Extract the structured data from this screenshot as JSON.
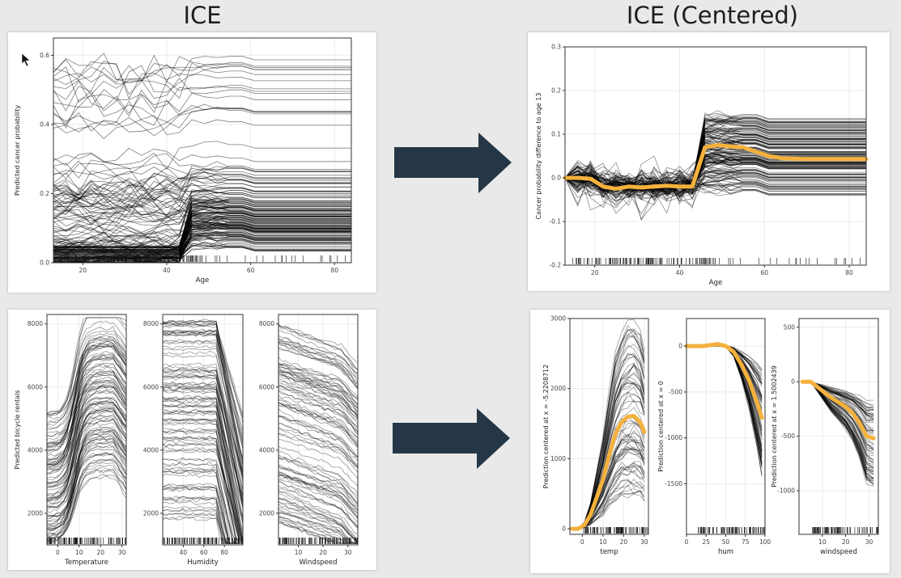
{
  "headings": {
    "left": "ICE",
    "right": "ICE (Centered)"
  },
  "colors": {
    "background": "#e9e9e9",
    "panel": "#ffffff",
    "line": "#000000",
    "highlight": "#f4b13d",
    "arrow": "#253746",
    "grid": "#ebebeb",
    "axis": "#333333"
  },
  "chart_data": [
    {
      "type": "line",
      "id": "cancer-ice",
      "xlabel": "Age",
      "ylabel": "Predicted cancer probability",
      "xlim": [
        13,
        84
      ],
      "ylim": [
        0,
        0.65
      ],
      "xticks": [
        20,
        40,
        60,
        80
      ],
      "xtick_labels": [
        "20",
        "40",
        "60",
        "80"
      ],
      "yticks": [
        0,
        0.2,
        0.4,
        0.6
      ],
      "ytick_labels": [
        "0.0",
        "0.2",
        "0.4",
        "0.6"
      ],
      "x": [
        13,
        16,
        19,
        22,
        25,
        28,
        31,
        34,
        37,
        40,
        43,
        46,
        49,
        52,
        55,
        58,
        61,
        64,
        70,
        76,
        84
      ],
      "series_count": 160,
      "shape": "step-up-after-45",
      "grid": true,
      "rug": true
    },
    {
      "type": "line",
      "id": "cancer-ice-centered",
      "xlabel": "Age",
      "ylabel": "Cancer probability difference to age 13",
      "xlim": [
        13,
        84
      ],
      "ylim": [
        -0.2,
        0.3
      ],
      "xticks": [
        20,
        40,
        60,
        80
      ],
      "xtick_labels": [
        "20",
        "40",
        "60",
        "80"
      ],
      "yticks": [
        -0.2,
        -0.1,
        0,
        0.1,
        0.2,
        0.3
      ],
      "ytick_labels": [
        "-0.2",
        "-0.1",
        "0.0",
        "0.1",
        "0.2",
        "0.3"
      ],
      "x": [
        13,
        16,
        19,
        22,
        25,
        28,
        31,
        34,
        37,
        40,
        43,
        46,
        49,
        52,
        55,
        58,
        61,
        64,
        70,
        76,
        84
      ],
      "pdp": [
        0,
        0.0,
        -0.002,
        -0.02,
        -0.025,
        -0.02,
        -0.022,
        -0.02,
        -0.018,
        -0.02,
        -0.02,
        0.07,
        0.075,
        0.072,
        0.07,
        0.06,
        0.05,
        0.045,
        0.043,
        0.043,
        0.043
      ],
      "series_count": 160,
      "grid": true,
      "rug": true
    },
    {
      "type": "line",
      "id": "bike-temperature",
      "xlabel": "Temperature",
      "ylabel": "Predicted bicycle rentals",
      "xlim": [
        -5,
        32
      ],
      "ylim": [
        1000,
        8300
      ],
      "xticks": [
        0,
        10,
        20,
        30
      ],
      "xtick_labels": [
        "0",
        "10",
        "20",
        "30"
      ],
      "yticks": [
        2000,
        4000,
        6000,
        8000
      ],
      "ytick_labels": [
        "2000",
        "4000",
        "6000",
        "8000"
      ],
      "series_count": 110,
      "grid": true,
      "rug": true
    },
    {
      "type": "line",
      "id": "bike-humidity",
      "xlabel": "Humidity",
      "ylabel": "",
      "xlim": [
        20,
        98
      ],
      "ylim": [
        1000,
        8300
      ],
      "xticks": [
        40,
        60,
        80
      ],
      "xtick_labels": [
        "40",
        "60",
        "80"
      ],
      "yticks": [
        2000,
        4000,
        6000,
        8000
      ],
      "ytick_labels": [
        "2000",
        "4000",
        "6000",
        "8000"
      ],
      "series_count": 110,
      "grid": true,
      "rug": true
    },
    {
      "type": "line",
      "id": "bike-windspeed",
      "xlabel": "Windspeed",
      "ylabel": "",
      "xlim": [
        2,
        34
      ],
      "ylim": [
        1000,
        8300
      ],
      "xticks": [
        10,
        20,
        30
      ],
      "xtick_labels": [
        "10",
        "20",
        "30"
      ],
      "yticks": [
        2000,
        4000,
        6000,
        8000
      ],
      "ytick_labels": [
        "2000",
        "4000",
        "6000",
        "8000"
      ],
      "series_count": 110,
      "grid": true,
      "rug": true
    },
    {
      "type": "line",
      "id": "bike-temp-centered",
      "xlabel": "temp",
      "ylabel": "Prediction centered at x = -5.2208712",
      "xlim": [
        -6,
        32
      ],
      "ylim": [
        -80,
        3000
      ],
      "xticks": [
        0,
        10,
        20,
        30
      ],
      "xtick_labels": [
        "0",
        "10",
        "20",
        "30"
      ],
      "yticks": [
        0,
        1000,
        2000,
        3000
      ],
      "ytick_labels": [
        "0",
        "1000",
        "2000",
        "3000"
      ],
      "pdp_x": [
        -5,
        -2,
        1,
        4,
        7,
        10,
        13,
        16,
        19,
        22,
        25,
        28,
        30
      ],
      "pdp": [
        0,
        0,
        50,
        200,
        450,
        700,
        1050,
        1350,
        1520,
        1600,
        1610,
        1520,
        1380
      ],
      "series_count": 80,
      "grid": true,
      "rug": true
    },
    {
      "type": "line",
      "id": "bike-hum-centered",
      "xlabel": "hum",
      "ylabel": "Prediction centered at x = 0",
      "xlim": [
        0,
        100
      ],
      "ylim": [
        -2050,
        300
      ],
      "xticks": [
        0,
        25,
        50,
        75,
        100
      ],
      "xtick_labels": [
        "0",
        "25",
        "50",
        "75",
        "100"
      ],
      "yticks": [
        -1500,
        -1000,
        -500,
        0
      ],
      "ytick_labels": [
        "-1500",
        "-1000",
        "-500",
        "0"
      ],
      "pdp_x": [
        0,
        10,
        20,
        30,
        40,
        50,
        60,
        70,
        80,
        90,
        96
      ],
      "pdp": [
        0,
        0,
        0,
        10,
        20,
        0,
        -60,
        -200,
        -380,
        -620,
        -780
      ],
      "series_count": 80,
      "grid": true,
      "rug": true
    },
    {
      "type": "line",
      "id": "bike-windspeed-centered",
      "xlabel": "windspeed",
      "ylabel": "Prediction centered at x = 1.5002439",
      "xlim": [
        0,
        34
      ],
      "ylim": [
        -1400,
        580
      ],
      "xticks": [
        10,
        20,
        30
      ],
      "xtick_labels": [
        "10",
        "20",
        "30"
      ],
      "yticks": [
        -1000,
        -500,
        0,
        500
      ],
      "ytick_labels": [
        "-1000",
        "-500",
        "0",
        "500"
      ],
      "pdp_x": [
        1.5,
        5,
        8,
        11,
        14,
        17,
        20,
        23,
        26,
        29,
        32
      ],
      "pdp": [
        0,
        0,
        -50,
        -100,
        -150,
        -190,
        -230,
        -290,
        -380,
        -500,
        -520
      ],
      "series_count": 80,
      "grid": true,
      "rug": true
    }
  ]
}
